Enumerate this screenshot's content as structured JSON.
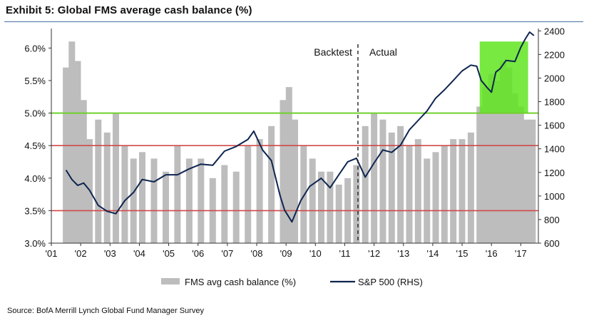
{
  "title": "Exhibit 5: Global FMS average cash balance (%)",
  "source": "Source: BofA Merrill Lynch Global Fund Manager Survey",
  "chart_data": {
    "type": "bar",
    "title": "Exhibit 5: Global FMS average cash balance (%)",
    "x_ticks": [
      "'01",
      "'02",
      "'03",
      "'04",
      "'05",
      "'06",
      "'07",
      "'08",
      "'09",
      "'10",
      "'11",
      "'12",
      "'13",
      "'14",
      "'15",
      "'16",
      "'17"
    ],
    "x_range": [
      2001.0,
      2017.6
    ],
    "y_left": {
      "ylim": [
        3.0,
        6.3
      ],
      "ticks": [
        3.0,
        3.5,
        4.0,
        4.5,
        5.0,
        5.5,
        6.0
      ],
      "tick_labels": [
        "3.0%",
        "3.5%",
        "4.0%",
        "4.5%",
        "5.0%",
        "5.5%",
        "6.0%"
      ]
    },
    "y_right": {
      "label": "S&P 500 (RHS)",
      "ylim": [
        600,
        2420
      ],
      "ticks": [
        600,
        800,
        1000,
        1200,
        1400,
        1600,
        1800,
        2000,
        2200,
        2400
      ],
      "tick_labels": [
        "600",
        "800",
        "1000",
        "1200",
        "1400",
        "1600",
        "1800",
        "2000",
        "2200",
        "2400"
      ]
    },
    "reference_lines": [
      {
        "y": 5.0,
        "color": "#6fd02c",
        "label": ""
      },
      {
        "y": 4.5,
        "color": "#d04a4a",
        "label": ""
      },
      {
        "y": 3.5,
        "color": "#d04a4a",
        "label": ""
      }
    ],
    "divider": {
      "x": 2011.45,
      "left_label": "Backtest",
      "right_label": "Actual"
    },
    "highlight": {
      "x0": 2015.6,
      "x1": 2017.25,
      "y0": 5.0,
      "y1": 6.1,
      "color": "#5fe51f"
    },
    "series": [
      {
        "name": "FMS avg cash balance (%)",
        "axis": "left",
        "kind": "bar",
        "color": "#bdbdbd",
        "x": [
          2001.5,
          2001.7,
          2001.9,
          2002.1,
          2002.3,
          2002.6,
          2002.9,
          2003.2,
          2003.5,
          2003.8,
          2004.1,
          2004.5,
          2004.9,
          2005.3,
          2005.7,
          2006.1,
          2006.5,
          2006.9,
          2007.3,
          2007.7,
          2008.1,
          2008.5,
          2008.9,
          2009.1,
          2009.3,
          2009.6,
          2009.9,
          2010.2,
          2010.5,
          2010.8,
          2011.1,
          2011.4,
          2011.7,
          2012.0,
          2012.3,
          2012.6,
          2012.9,
          2013.2,
          2013.5,
          2013.8,
          2014.1,
          2014.4,
          2014.7,
          2015.0,
          2015.3,
          2015.6,
          2015.8,
          2016.0,
          2016.2,
          2016.4,
          2016.6,
          2016.8,
          2017.0,
          2017.2,
          2017.4
        ],
        "values": [
          5.7,
          6.1,
          5.8,
          5.2,
          4.6,
          4.9,
          4.7,
          5.0,
          4.5,
          4.3,
          4.4,
          4.3,
          4.1,
          4.5,
          4.3,
          4.3,
          4.0,
          4.2,
          4.1,
          4.5,
          4.6,
          4.8,
          5.2,
          5.4,
          4.9,
          4.5,
          4.3,
          4.1,
          4.1,
          3.9,
          4.0,
          4.2,
          4.8,
          5.0,
          4.9,
          4.7,
          4.8,
          4.5,
          4.6,
          4.3,
          4.4,
          4.5,
          4.6,
          4.6,
          4.7,
          5.1,
          5.4,
          5.6,
          5.5,
          5.8,
          5.7,
          5.3,
          5.1,
          4.9,
          4.9
        ]
      },
      {
        "name": "S&P 500 (RHS)",
        "axis": "right",
        "kind": "line",
        "color": "#0f2550",
        "x": [
          2001.5,
          2001.7,
          2001.9,
          2002.1,
          2002.3,
          2002.6,
          2002.9,
          2003.2,
          2003.5,
          2003.8,
          2004.1,
          2004.5,
          2004.9,
          2005.3,
          2005.7,
          2006.1,
          2006.5,
          2006.9,
          2007.3,
          2007.7,
          2007.9,
          2008.2,
          2008.5,
          2008.8,
          2008.95,
          2009.2,
          2009.5,
          2009.8,
          2010.2,
          2010.5,
          2010.8,
          2011.1,
          2011.4,
          2011.7,
          2012.0,
          2012.3,
          2012.6,
          2012.9,
          2013.2,
          2013.5,
          2013.8,
          2014.1,
          2014.4,
          2014.7,
          2015.0,
          2015.3,
          2015.5,
          2015.65,
          2015.85,
          2016.0,
          2016.15,
          2016.3,
          2016.5,
          2016.8,
          2017.0,
          2017.15,
          2017.3,
          2017.45
        ],
        "values": [
          1220,
          1140,
          1090,
          1110,
          1050,
          920,
          870,
          850,
          960,
          1030,
          1140,
          1120,
          1180,
          1180,
          1230,
          1270,
          1260,
          1380,
          1420,
          1480,
          1550,
          1390,
          1300,
          1000,
          880,
          780,
          960,
          1080,
          1150,
          1070,
          1180,
          1290,
          1320,
          1160,
          1280,
          1390,
          1370,
          1430,
          1560,
          1640,
          1720,
          1830,
          1900,
          1980,
          2060,
          2110,
          2100,
          1980,
          1920,
          1880,
          2050,
          2080,
          2150,
          2140,
          2260,
          2330,
          2390,
          2360
        ]
      }
    ],
    "legend": [
      "FMS avg cash balance (%)",
      "S&P 500 (RHS)"
    ],
    "legend_position": "bottom-center"
  }
}
